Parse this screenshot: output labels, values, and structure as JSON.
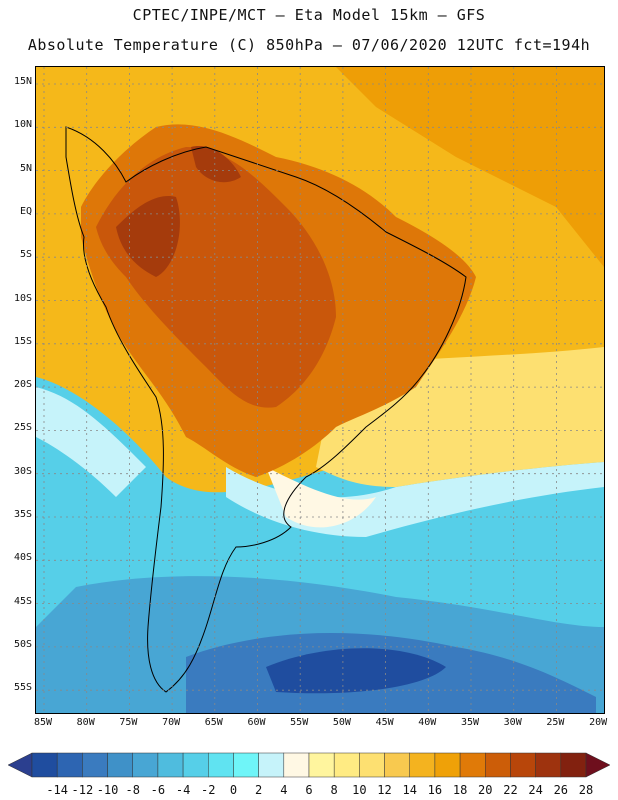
{
  "header": {
    "line1": "CPTEC/INPE/MCT –  Eta Model 15km – GFS",
    "line2": "Absolute Temperature (C) 850hPa – 07/06/2020 12UTC fct=194h"
  },
  "map": {
    "lat_labels": [
      "15N",
      "10N",
      "5N",
      "EQ",
      "5S",
      "10S",
      "15S",
      "20S",
      "25S",
      "30S",
      "35S",
      "40S",
      "45S",
      "50S",
      "55S"
    ],
    "lon_labels": [
      "85W",
      "80W",
      "75W",
      "70W",
      "65W",
      "60W",
      "55W",
      "50W",
      "45W",
      "40W",
      "35W",
      "30W",
      "25W",
      "20W"
    ]
  },
  "colorbar": {
    "labels": [
      "-14",
      "-12",
      "-10",
      "-8",
      "-6",
      "-4",
      "-2",
      "0",
      "2",
      "4",
      "6",
      "8",
      "10",
      "12",
      "14",
      "16",
      "18",
      "20",
      "22",
      "24",
      "26",
      "28"
    ],
    "colors": [
      "#2b3f8f",
      "#1f4d9f",
      "#2d65b2",
      "#3a7bbf",
      "#3f91c8",
      "#48a6d4",
      "#4fbcde",
      "#56cfe8",
      "#60e3f1",
      "#6ff5f8",
      "#c6f3fa",
      "#fff8e4",
      "#fff59e",
      "#ffeb83",
      "#fde071",
      "#f8c94f",
      "#f4b31f",
      "#efa108",
      "#e07a08",
      "#cc5d08",
      "#b8460a",
      "#9e330e",
      "#82210f",
      "#6e0f1d"
    ]
  },
  "field": {
    "colors": {
      "ocean_warm": "#f5b81a",
      "warm_mid": "#ee9e06",
      "hot": "#de7708",
      "very_hot": "#c9570b",
      "hottest": "#a53b0c",
      "mild": "#fde071",
      "pale": "#fff8e4",
      "cool_light": "#c6f3fa",
      "cool": "#56cfe8",
      "cold": "#48a6d4",
      "colder": "#3a7bbf",
      "coldest": "#1f4d9f"
    }
  }
}
